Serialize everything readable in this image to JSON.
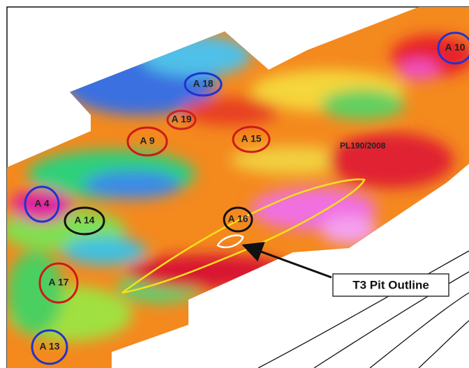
{
  "anomalies": [
    "A 10",
    "A 18",
    "A 19",
    "A 9",
    "A 15",
    "A 4",
    "A 14",
    "A 16",
    "A 17",
    "A 13"
  ],
  "licence": "PL190/2008",
  "callout": "T3 Pit Outline"
}
